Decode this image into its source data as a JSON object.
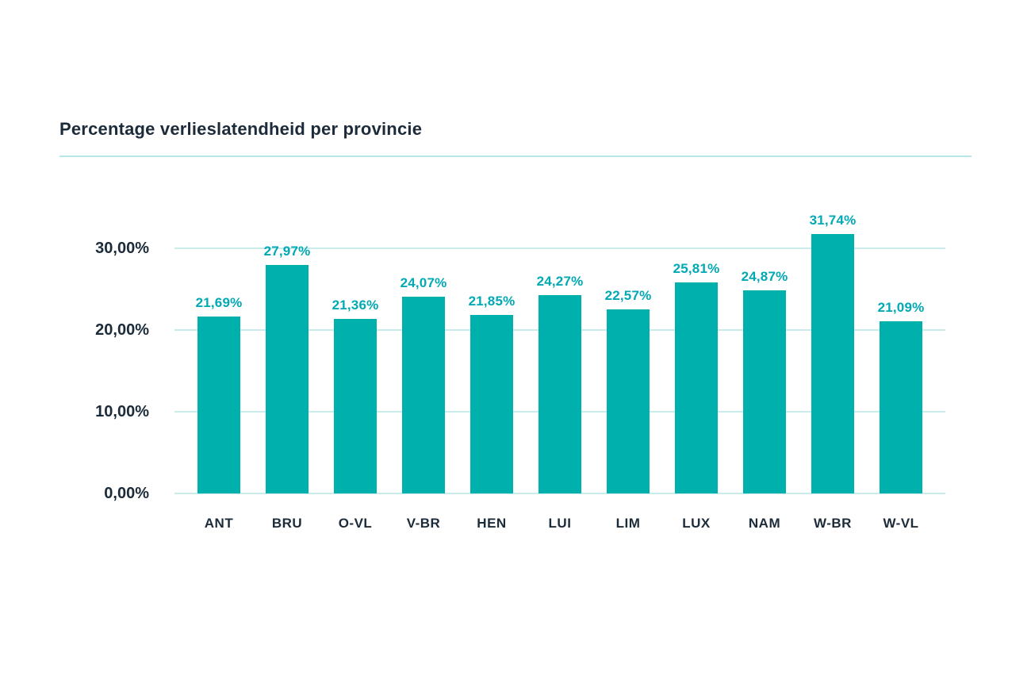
{
  "header": {
    "title": "Percentage verlieslatendheid per provincie"
  },
  "chart_data": {
    "type": "bar",
    "title": "Percentage verlieslatendheid per provincie",
    "xlabel": "",
    "ylabel": "",
    "categories": [
      "ANT",
      "BRU",
      "O-VL",
      "V-BR",
      "HEN",
      "LUI",
      "LIM",
      "LUX",
      "NAM",
      "W-BR",
      "W-VL"
    ],
    "values": [
      21.69,
      27.97,
      21.36,
      24.07,
      21.85,
      24.27,
      22.57,
      25.81,
      24.87,
      31.74,
      21.09
    ],
    "value_labels": [
      "21,69%",
      "27,97%",
      "21,36%",
      "24,07%",
      "21,85%",
      "24,27%",
      "22,57%",
      "25,81%",
      "24,87%",
      "31,74%",
      "21,09%"
    ],
    "y_ticks": [
      {
        "value": 0,
        "label": "0,00%"
      },
      {
        "value": 10,
        "label": "10,00%"
      },
      {
        "value": 20,
        "label": "20,00%"
      },
      {
        "value": 30,
        "label": "30,00%"
      }
    ],
    "ylim": [
      0,
      36
    ],
    "grid": true,
    "legend": false,
    "decimal_separator": ",",
    "colors": {
      "bar": "#00b0ad",
      "value_label": "#00a9b4",
      "axis_text": "#1c2b3a",
      "gridline": "#c9ebe9",
      "title_underline": "#b7e6e9"
    }
  }
}
